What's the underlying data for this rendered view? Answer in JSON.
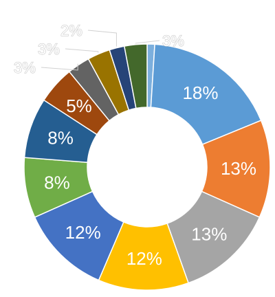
{
  "chart_data": {
    "type": "pie",
    "variant": "donut",
    "categories": [
      "",
      "",
      "",
      "",
      "",
      "",
      "",
      "",
      "",
      "",
      "",
      ""
    ],
    "values": [
      18,
      13,
      13,
      12,
      12,
      8,
      8,
      5,
      3,
      3,
      2,
      3
    ],
    "labels": [
      "18%",
      "13%",
      "13%",
      "12%",
      "12%",
      "8%",
      "8%",
      "5%",
      "3%",
      "3%",
      "2%",
      "3%"
    ],
    "colors": [
      "#5b9bd5",
      "#ed7d31",
      "#a5a5a5",
      "#ffc000",
      "#4472c4",
      "#70ad47",
      "#255e91",
      "#9e480e",
      "#636363",
      "#997300",
      "#264478",
      "#43682b"
    ],
    "small_slice": {
      "value": 1,
      "color": "#7cafdd"
    },
    "legend": "none",
    "title": ""
  }
}
